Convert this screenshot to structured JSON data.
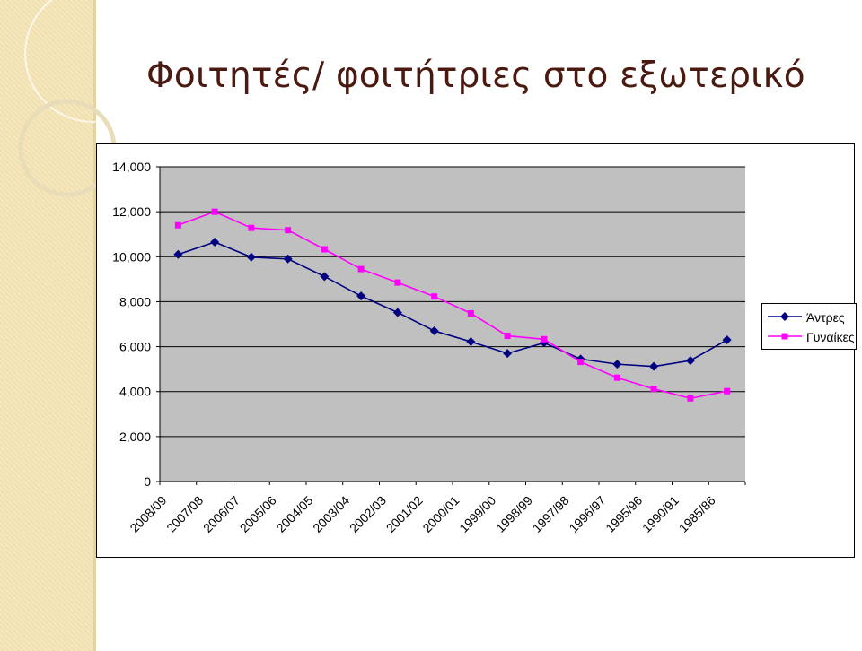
{
  "slide": {
    "title": "Φοιτητές/ φοιτήτριες στο εξωτερικό"
  },
  "colors": {
    "men": "#000080",
    "women": "#ff00ff",
    "plot_bg": "#c0c0c0",
    "title": "#4a1a10"
  },
  "chart_data": {
    "type": "line",
    "title": "",
    "xlabel": "",
    "ylabel": "",
    "categories": [
      "2008/09",
      "2007/08",
      "2006/07",
      "2005/06",
      "2004/05",
      "2003/04",
      "2002/03",
      "2001/02",
      "2000/01",
      "1999/00",
      "1998/99",
      "1997/98",
      "1996/97",
      "1995/96",
      "1990/91",
      "1985/86"
    ],
    "y_ticks": [
      "0",
      "2,000",
      "4,000",
      "6,000",
      "8,000",
      "10,000",
      "12,000",
      "14,000"
    ],
    "ylim": [
      0,
      14000
    ],
    "grid": "horizontal",
    "legend_position": "right",
    "series": [
      {
        "name": "Άντρες",
        "marker": "diamond",
        "values": [
          10100,
          10650,
          9980,
          9900,
          9120,
          8250,
          7520,
          6700,
          6220,
          5700,
          6170,
          5450,
          5220,
          5120,
          5380,
          6300
        ]
      },
      {
        "name": "Γυναίκες",
        "marker": "square",
        "values": [
          11400,
          12000,
          11280,
          11180,
          10330,
          9450,
          8850,
          8230,
          7480,
          6480,
          6330,
          5320,
          4620,
          4120,
          3700,
          4020
        ]
      }
    ]
  }
}
